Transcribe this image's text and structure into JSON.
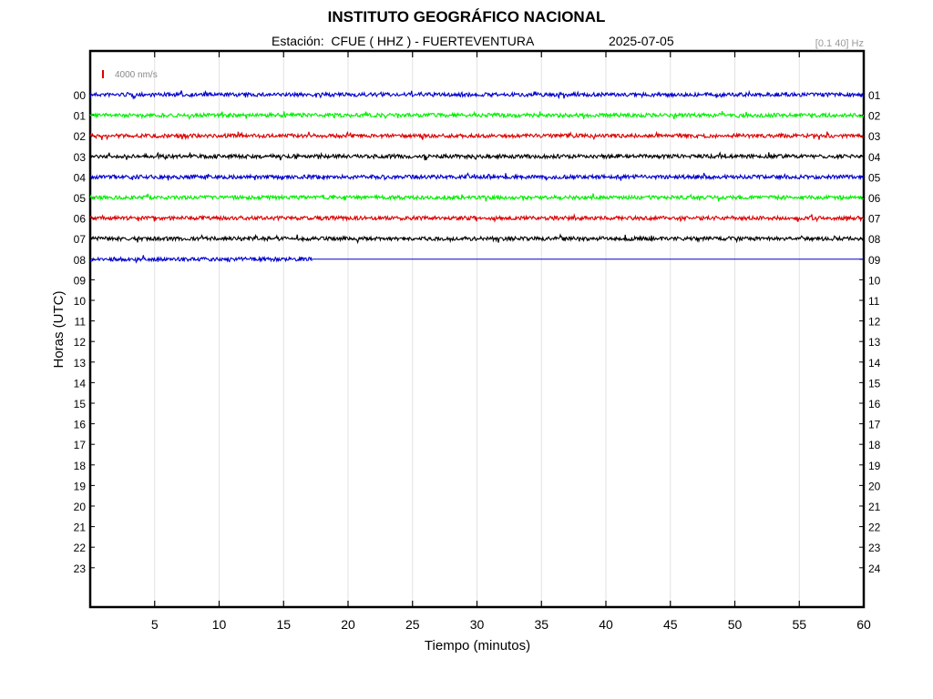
{
  "header": {
    "title": "INSTITUTO GEOGRÁFICO NACIONAL",
    "station_label": "Estación:  CFUE ( HHZ ) - FUERTEVENTURA",
    "date": "2025-07-05",
    "filter": "[0.1 40] Hz"
  },
  "chart_data": {
    "type": "line",
    "title": "INSTITUTO GEOGRÁFICO NACIONAL",
    "xlabel": "Tiempo (minutos)",
    "ylabel": "Horas (UTC)",
    "xlim": [
      0,
      60
    ],
    "x_ticks": [
      5,
      10,
      15,
      20,
      25,
      30,
      35,
      40,
      45,
      50,
      55,
      60
    ],
    "left_ticks": [
      "00",
      "01",
      "02",
      "03",
      "04",
      "05",
      "06",
      "07",
      "08",
      "09",
      "10",
      "11",
      "12",
      "13",
      "14",
      "15",
      "16",
      "17",
      "18",
      "19",
      "20",
      "21",
      "22",
      "23"
    ],
    "right_ticks": [
      "01",
      "02",
      "03",
      "04",
      "05",
      "06",
      "07",
      "08",
      "09",
      "10",
      "11",
      "12",
      "13",
      "14",
      "15",
      "16",
      "17",
      "18",
      "19",
      "20",
      "21",
      "22",
      "23",
      "24"
    ],
    "scale_label": "4000 nm/s",
    "grid": true,
    "trace_colors": [
      "#0000cc",
      "#00ee00",
      "#dd0000",
      "#000000"
    ],
    "traces": [
      {
        "hour": "00",
        "data_end_min": 60
      },
      {
        "hour": "01",
        "data_end_min": 60
      },
      {
        "hour": "02",
        "data_end_min": 60
      },
      {
        "hour": "03",
        "data_end_min": 60
      },
      {
        "hour": "04",
        "data_end_min": 60
      },
      {
        "hour": "05",
        "data_end_min": 60
      },
      {
        "hour": "06",
        "data_end_min": 60
      },
      {
        "hour": "07",
        "data_end_min": 60
      },
      {
        "hour": "08",
        "data_end_min": 17.2
      }
    ]
  }
}
